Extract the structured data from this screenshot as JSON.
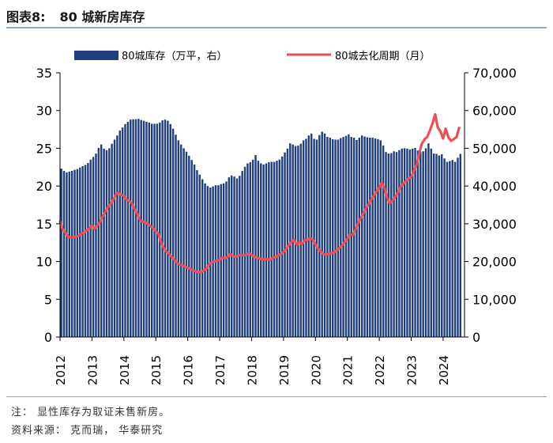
{
  "figure": {
    "label": "图表8:",
    "title": "80 城新房库存"
  },
  "notes": {
    "note": "注： 显性库存为取证未售新房。",
    "source": "资料来源： 克而瑞， 华泰研究"
  },
  "colors": {
    "bar": "#1f3e7c",
    "line": "#ee4e55",
    "rule": "#8aa7c8"
  },
  "chart_data": {
    "type": "bar+line",
    "x_ticks": [
      "2012",
      "2013",
      "2014",
      "2015",
      "2016",
      "2017",
      "2018",
      "2019",
      "2020",
      "2021",
      "2022",
      "2023",
      "2024"
    ],
    "left_axis": {
      "ylim": [
        0,
        35
      ],
      "ticks": [
        "0",
        "5",
        "10",
        "15",
        "20",
        "25",
        "30",
        "35"
      ]
    },
    "right_axis": {
      "ylim": [
        0,
        70000
      ],
      "ticks": [
        "0",
        "10,000",
        "20,000",
        "30,000",
        "40,000",
        "50,000",
        "60,000",
        "70,000"
      ]
    },
    "grid": false,
    "legend_position": "top",
    "series": [
      {
        "name": "80城库存（万平，右）",
        "type": "bar",
        "axis": "right",
        "note": "monthly values, Jan 2012 – Jul 2024",
        "values": [
          44600,
          44000,
          43600,
          43800,
          44000,
          44300,
          44500,
          44900,
          45300,
          45600,
          46100,
          47000,
          47700,
          48600,
          50100,
          51000,
          49900,
          49500,
          50000,
          51200,
          52300,
          53400,
          54700,
          55500,
          56400,
          57000,
          57600,
          57700,
          57700,
          57800,
          57500,
          57300,
          57000,
          56800,
          56500,
          56500,
          56500,
          56800,
          57400,
          57600,
          57300,
          56400,
          55200,
          53600,
          52100,
          51000,
          50000,
          49100,
          48000,
          46900,
          45700,
          44200,
          43000,
          41800,
          40700,
          40000,
          39600,
          39900,
          40200,
          40200,
          40500,
          40700,
          41200,
          42300,
          42800,
          42500,
          42000,
          42700,
          44000,
          45100,
          46000,
          46300,
          47000,
          48200,
          46700,
          46000,
          45700,
          46000,
          46300,
          46400,
          46400,
          46700,
          47000,
          47800,
          48900,
          49900,
          51300,
          51000,
          50600,
          50700,
          51200,
          52100,
          52500,
          53400,
          53900,
          52500,
          52300,
          53500,
          54400,
          53900,
          53000,
          52800,
          52400,
          52300,
          52300,
          52700,
          53000,
          53300,
          53700,
          53000,
          52800,
          52200,
          52800,
          53400,
          53100,
          52900,
          52800,
          52800,
          52600,
          52400,
          52100,
          50700,
          49000,
          48600,
          48700,
          49200,
          49000,
          49500,
          49900,
          50000,
          49900,
          49700,
          49900,
          50100,
          49400,
          49000,
          49200,
          50000,
          51300,
          49900,
          48600,
          48500,
          48100,
          48400,
          47300,
          46400,
          46600,
          46900,
          46400,
          47500,
          48500
        ]
      },
      {
        "name": "80城去化周期（月）",
        "type": "line",
        "axis": "left",
        "values": [
          [
            2012.0,
            15.3
          ],
          [
            2012.08,
            14.3
          ],
          [
            2012.17,
            13.8
          ],
          [
            2012.25,
            13.3
          ],
          [
            2012.33,
            13.2
          ],
          [
            2012.42,
            13.2
          ],
          [
            2012.5,
            13.3
          ],
          [
            2012.58,
            13.4
          ],
          [
            2012.67,
            13.7
          ],
          [
            2012.75,
            13.8
          ],
          [
            2012.83,
            14.1
          ],
          [
            2012.92,
            14.4
          ],
          [
            2013.0,
            14.8
          ],
          [
            2013.08,
            14.3
          ],
          [
            2013.17,
            14.8
          ],
          [
            2013.25,
            15.2
          ],
          [
            2013.33,
            15.9
          ],
          [
            2013.42,
            16.6
          ],
          [
            2013.5,
            17.2
          ],
          [
            2013.58,
            17.6
          ],
          [
            2013.67,
            18.2
          ],
          [
            2013.75,
            18.9
          ],
          [
            2013.83,
            19.1
          ],
          [
            2013.92,
            18.8
          ],
          [
            2014.0,
            18.7
          ],
          [
            2014.08,
            18.2
          ],
          [
            2014.17,
            18.0
          ],
          [
            2014.25,
            17.7
          ],
          [
            2014.33,
            17.0
          ],
          [
            2014.42,
            16.3
          ],
          [
            2014.5,
            15.5
          ],
          [
            2014.58,
            15.3
          ],
          [
            2014.67,
            15.2
          ],
          [
            2014.75,
            15.0
          ],
          [
            2014.83,
            14.7
          ],
          [
            2014.92,
            14.4
          ],
          [
            2015.0,
            14.0
          ],
          [
            2015.08,
            13.7
          ],
          [
            2015.17,
            12.5
          ],
          [
            2015.25,
            11.8
          ],
          [
            2015.33,
            11.3
          ],
          [
            2015.42,
            11.0
          ],
          [
            2015.5,
            10.6
          ],
          [
            2015.58,
            10.2
          ],
          [
            2015.67,
            9.8
          ],
          [
            2015.75,
            9.6
          ],
          [
            2015.83,
            9.5
          ],
          [
            2015.92,
            9.3
          ],
          [
            2016.0,
            9.2
          ],
          [
            2016.08,
            9.0
          ],
          [
            2016.17,
            8.8
          ],
          [
            2016.25,
            8.7
          ],
          [
            2016.33,
            8.6
          ],
          [
            2016.42,
            8.6
          ],
          [
            2016.5,
            8.8
          ],
          [
            2016.58,
            9.0
          ],
          [
            2016.67,
            9.6
          ],
          [
            2016.75,
            9.9
          ],
          [
            2016.83,
            10.0
          ],
          [
            2016.92,
            10.1
          ],
          [
            2017.0,
            10.2
          ],
          [
            2017.08,
            10.5
          ],
          [
            2017.17,
            10.4
          ],
          [
            2017.25,
            10.6
          ],
          [
            2017.33,
            11.0
          ],
          [
            2017.42,
            10.7
          ],
          [
            2017.5,
            10.6
          ],
          [
            2017.58,
            10.8
          ],
          [
            2017.67,
            10.9
          ],
          [
            2017.75,
            10.8
          ],
          [
            2017.83,
            10.9
          ],
          [
            2017.92,
            11.1
          ],
          [
            2018.0,
            10.9
          ],
          [
            2018.08,
            10.6
          ],
          [
            2018.17,
            10.5
          ],
          [
            2018.25,
            10.4
          ],
          [
            2018.33,
            10.3
          ],
          [
            2018.42,
            10.3
          ],
          [
            2018.5,
            10.3
          ],
          [
            2018.58,
            10.2
          ],
          [
            2018.67,
            10.5
          ],
          [
            2018.75,
            10.6
          ],
          [
            2018.83,
            10.8
          ],
          [
            2018.92,
            11.0
          ],
          [
            2019.0,
            11.3
          ],
          [
            2019.08,
            11.6
          ],
          [
            2019.17,
            12.2
          ],
          [
            2019.25,
            12.6
          ],
          [
            2019.33,
            12.9
          ],
          [
            2019.42,
            12.2
          ],
          [
            2019.5,
            12.6
          ],
          [
            2019.58,
            12.3
          ],
          [
            2019.67,
            12.9
          ],
          [
            2019.75,
            12.8
          ],
          [
            2019.83,
            13.1
          ],
          [
            2019.92,
            12.9
          ],
          [
            2020.0,
            12.3
          ],
          [
            2020.08,
            11.7
          ],
          [
            2020.17,
            11.3
          ],
          [
            2020.25,
            11.0
          ],
          [
            2020.33,
            10.9
          ],
          [
            2020.42,
            11.0
          ],
          [
            2020.5,
            11.1
          ],
          [
            2020.58,
            11.2
          ],
          [
            2020.67,
            11.5
          ],
          [
            2020.75,
            11.8
          ],
          [
            2020.83,
            12.1
          ],
          [
            2020.92,
            12.6
          ],
          [
            2021.0,
            13.0
          ],
          [
            2021.08,
            13.6
          ],
          [
            2021.17,
            13.5
          ],
          [
            2021.25,
            14.2
          ],
          [
            2021.33,
            15.0
          ],
          [
            2021.42,
            15.7
          ],
          [
            2021.5,
            16.4
          ],
          [
            2021.58,
            17.0
          ],
          [
            2021.67,
            17.6
          ],
          [
            2021.75,
            18.2
          ],
          [
            2021.83,
            18.7
          ],
          [
            2021.92,
            19.3
          ],
          [
            2022.0,
            19.8
          ],
          [
            2022.08,
            20.4
          ],
          [
            2022.17,
            19.6
          ],
          [
            2022.25,
            18.4
          ],
          [
            2022.33,
            17.7
          ],
          [
            2022.42,
            18.1
          ],
          [
            2022.5,
            18.6
          ],
          [
            2022.58,
            19.1
          ],
          [
            2022.67,
            19.9
          ],
          [
            2022.75,
            20.3
          ],
          [
            2022.83,
            20.6
          ],
          [
            2022.92,
            21.0
          ],
          [
            2023.0,
            21.2
          ],
          [
            2023.08,
            22.0
          ],
          [
            2023.17,
            22.8
          ],
          [
            2023.25,
            24.3
          ],
          [
            2023.33,
            25.6
          ],
          [
            2023.42,
            26.2
          ],
          [
            2023.5,
            26.5
          ],
          [
            2023.58,
            27.3
          ],
          [
            2023.67,
            28.3
          ],
          [
            2023.75,
            29.5
          ],
          [
            2023.83,
            27.8
          ],
          [
            2023.92,
            27.2
          ],
          [
            2024.0,
            26.3
          ],
          [
            2024.08,
            27.6
          ],
          [
            2024.17,
            26.4
          ],
          [
            2024.25,
            26.0
          ],
          [
            2024.33,
            26.2
          ],
          [
            2024.42,
            26.5
          ],
          [
            2024.5,
            27.7
          ]
        ]
      }
    ]
  }
}
